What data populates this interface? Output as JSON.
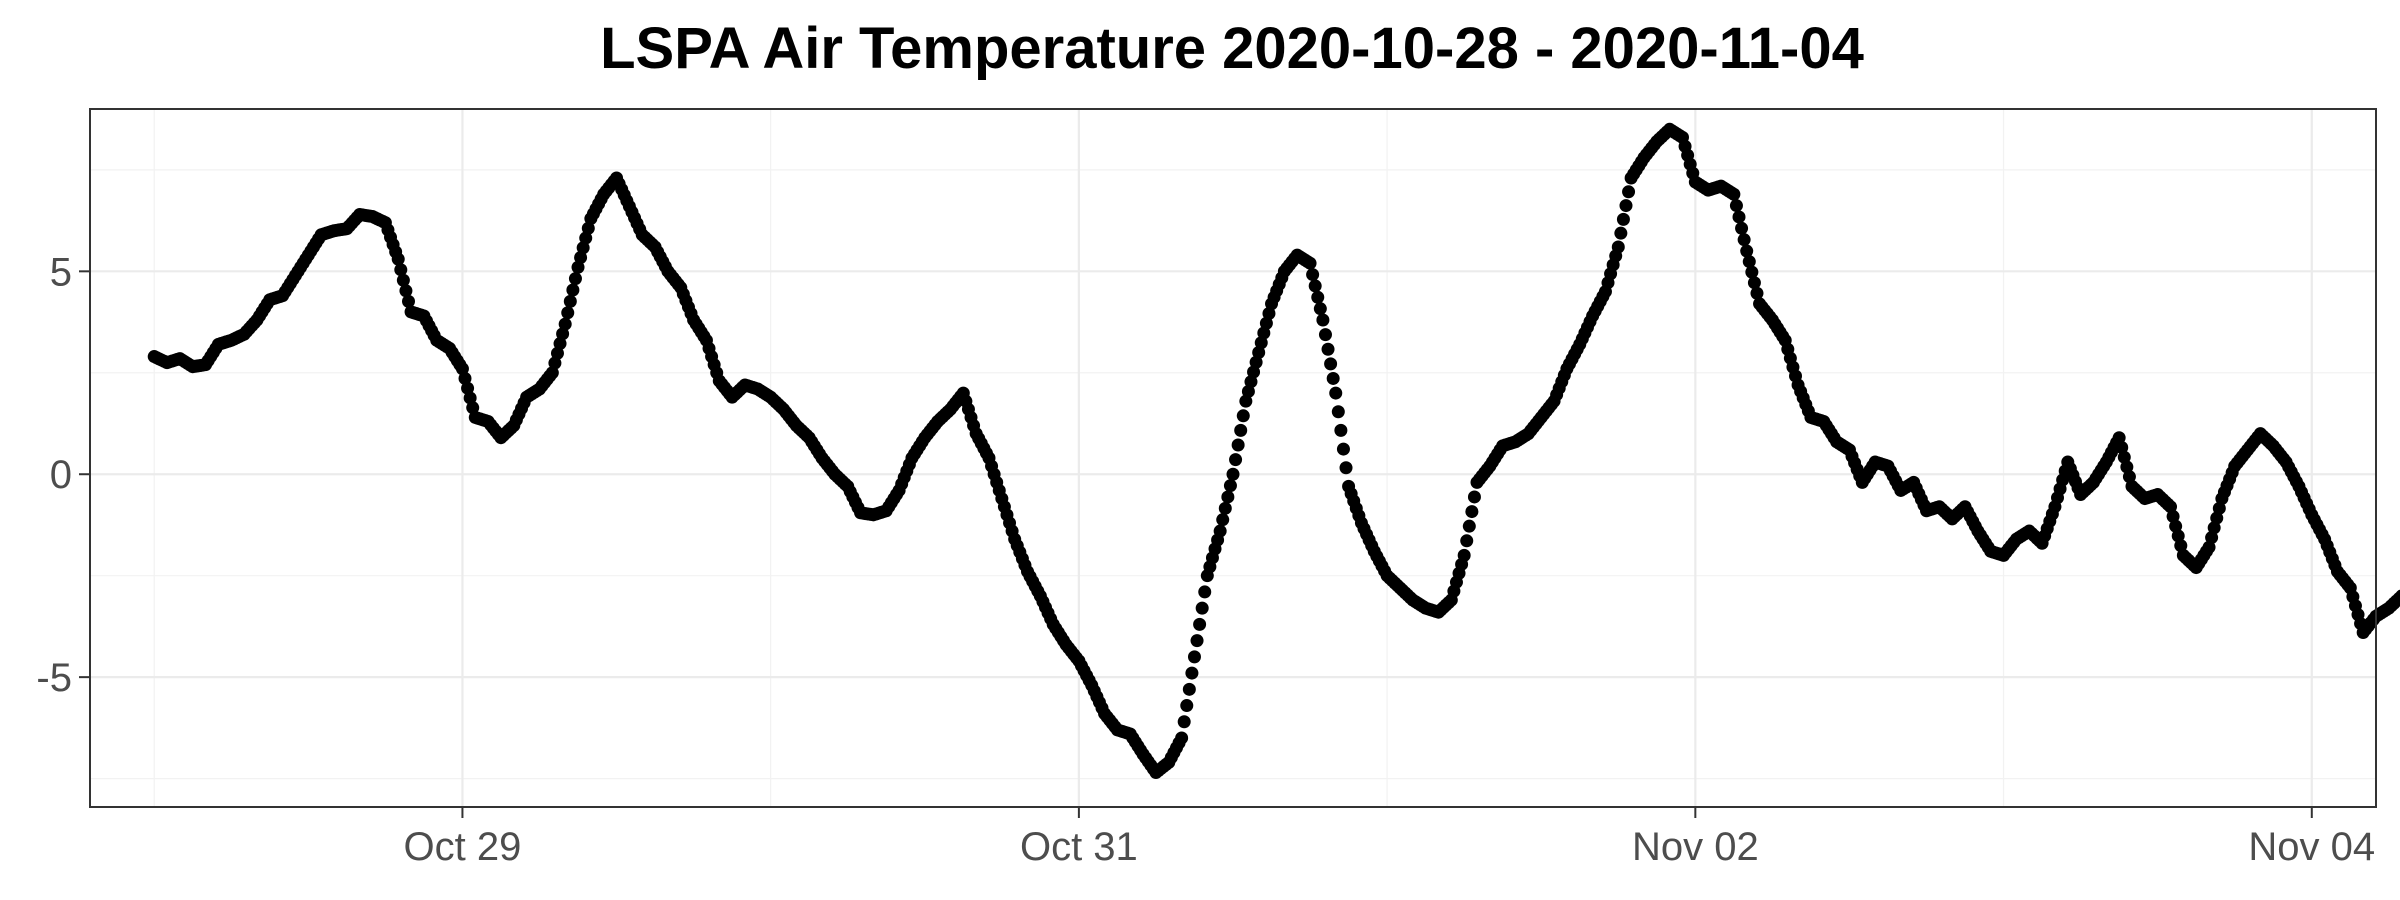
{
  "chart_data": {
    "type": "scatter",
    "title": "LSPA Air Temperature 2020-10-28 - 2020-11-04",
    "xlabel": "",
    "ylabel": "",
    "x_unit": "datetime",
    "xlim": [
      "2020-10-27T19:00",
      "2020-11-04T05:00"
    ],
    "ylim": [
      -8.2,
      9.0
    ],
    "x_ticks": [
      {
        "value": "2020-10-29T00:00",
        "label": "Oct 29"
      },
      {
        "value": "2020-10-31T00:00",
        "label": "Oct 31"
      },
      {
        "value": "2020-11-02T00:00",
        "label": "Nov 02"
      },
      {
        "value": "2020-11-04T00:00",
        "label": "Nov 04"
      }
    ],
    "y_ticks": [
      {
        "value": 5,
        "label": "5"
      },
      {
        "value": 0,
        "label": "0"
      },
      {
        "value": -5,
        "label": "-5"
      }
    ],
    "grid": true,
    "legend": "none",
    "point_color": "#000000",
    "series": [
      {
        "points": [
          [
            "2020-10-28T00:00",
            2.9
          ],
          [
            "2020-10-28T01:00",
            2.75
          ],
          [
            "2020-10-28T02:00",
            2.85
          ],
          [
            "2020-10-28T03:00",
            2.65
          ],
          [
            "2020-10-28T04:00",
            2.7
          ],
          [
            "2020-10-28T05:00",
            3.2
          ],
          [
            "2020-10-28T06:00",
            3.3
          ],
          [
            "2020-10-28T07:00",
            3.45
          ],
          [
            "2020-10-28T08:00",
            3.8
          ],
          [
            "2020-10-28T09:00",
            4.3
          ],
          [
            "2020-10-28T10:00",
            4.4
          ],
          [
            "2020-10-28T11:00",
            4.9
          ],
          [
            "2020-10-28T12:00",
            5.4
          ],
          [
            "2020-10-28T13:00",
            5.9
          ],
          [
            "2020-10-28T14:00",
            6.0
          ],
          [
            "2020-10-28T15:00",
            6.05
          ],
          [
            "2020-10-28T16:00",
            6.4
          ],
          [
            "2020-10-28T17:00",
            6.35
          ],
          [
            "2020-10-28T18:00",
            6.2
          ],
          [
            "2020-10-28T19:00",
            5.3
          ],
          [
            "2020-10-28T20:00",
            4.0
          ],
          [
            "2020-10-28T21:00",
            3.9
          ],
          [
            "2020-10-28T22:00",
            3.3
          ],
          [
            "2020-10-28T23:00",
            3.1
          ],
          [
            "2020-10-29T00:00",
            2.6
          ],
          [
            "2020-10-29T01:00",
            1.4
          ],
          [
            "2020-10-29T02:00",
            1.3
          ],
          [
            "2020-10-29T03:00",
            0.9
          ],
          [
            "2020-10-29T04:00",
            1.2
          ],
          [
            "2020-10-29T05:00",
            1.9
          ],
          [
            "2020-10-29T06:00",
            2.1
          ],
          [
            "2020-10-29T07:00",
            2.5
          ],
          [
            "2020-10-29T08:00",
            3.7
          ],
          [
            "2020-10-29T09:00",
            5.1
          ],
          [
            "2020-10-29T10:00",
            6.3
          ],
          [
            "2020-10-29T11:00",
            6.9
          ],
          [
            "2020-10-29T12:00",
            7.3
          ],
          [
            "2020-10-29T13:00",
            6.6
          ],
          [
            "2020-10-29T14:00",
            5.9
          ],
          [
            "2020-10-29T15:00",
            5.6
          ],
          [
            "2020-10-29T16:00",
            5.0
          ],
          [
            "2020-10-29T17:00",
            4.6
          ],
          [
            "2020-10-29T18:00",
            3.8
          ],
          [
            "2020-10-29T19:00",
            3.3
          ],
          [
            "2020-10-29T20:00",
            2.3
          ],
          [
            "2020-10-29T21:00",
            1.9
          ],
          [
            "2020-10-29T22:00",
            2.2
          ],
          [
            "2020-10-29T23:00",
            2.1
          ],
          [
            "2020-10-30T00:00",
            1.9
          ],
          [
            "2020-10-30T01:00",
            1.6
          ],
          [
            "2020-10-30T02:00",
            1.2
          ],
          [
            "2020-10-30T03:00",
            0.9
          ],
          [
            "2020-10-30T04:00",
            0.4
          ],
          [
            "2020-10-30T05:00",
            0.0
          ],
          [
            "2020-10-30T06:00",
            -0.3
          ],
          [
            "2020-10-30T07:00",
            -0.95
          ],
          [
            "2020-10-30T08:00",
            -1.0
          ],
          [
            "2020-10-30T09:00",
            -0.9
          ],
          [
            "2020-10-30T10:00",
            -0.4
          ],
          [
            "2020-10-30T11:00",
            0.4
          ],
          [
            "2020-10-30T12:00",
            0.9
          ],
          [
            "2020-10-30T13:00",
            1.3
          ],
          [
            "2020-10-30T14:00",
            1.6
          ],
          [
            "2020-10-30T15:00",
            2.0
          ],
          [
            "2020-10-30T16:00",
            1.0
          ],
          [
            "2020-10-30T17:00",
            0.4
          ],
          [
            "2020-10-30T18:00",
            -0.6
          ],
          [
            "2020-10-30T19:00",
            -1.6
          ],
          [
            "2020-10-30T20:00",
            -2.4
          ],
          [
            "2020-10-30T21:00",
            -3.0
          ],
          [
            "2020-10-30T22:00",
            -3.7
          ],
          [
            "2020-10-30T23:00",
            -4.2
          ],
          [
            "2020-10-31T00:00",
            -4.6
          ],
          [
            "2020-10-31T01:00",
            -5.2
          ],
          [
            "2020-10-31T02:00",
            -5.9
          ],
          [
            "2020-10-31T03:00",
            -6.3
          ],
          [
            "2020-10-31T04:00",
            -6.4
          ],
          [
            "2020-10-31T05:00",
            -6.9
          ],
          [
            "2020-10-31T06:00",
            -7.35
          ],
          [
            "2020-10-31T07:00",
            -7.1
          ],
          [
            "2020-10-31T08:00",
            -6.5
          ],
          [
            "2020-10-31T09:00",
            -4.5
          ],
          [
            "2020-10-31T10:00",
            -2.5
          ],
          [
            "2020-10-31T11:00",
            -1.4
          ],
          [
            "2020-10-31T12:00",
            0.0
          ],
          [
            "2020-10-31T13:00",
            1.8
          ],
          [
            "2020-10-31T14:00",
            3.0
          ],
          [
            "2020-10-31T15:00",
            4.2
          ],
          [
            "2020-10-31T16:00",
            5.0
          ],
          [
            "2020-10-31T17:00",
            5.4
          ],
          [
            "2020-10-31T18:00",
            5.2
          ],
          [
            "2020-10-31T19:00",
            3.8
          ],
          [
            "2020-10-31T20:00",
            2.0
          ],
          [
            "2020-10-31T21:00",
            -0.3
          ],
          [
            "2020-10-31T22:00",
            -1.2
          ],
          [
            "2020-10-31T23:00",
            -1.9
          ],
          [
            "2020-11-01T00:00",
            -2.5
          ],
          [
            "2020-11-01T01:00",
            -2.8
          ],
          [
            "2020-11-01T02:00",
            -3.1
          ],
          [
            "2020-11-01T03:00",
            -3.3
          ],
          [
            "2020-11-01T04:00",
            -3.4
          ],
          [
            "2020-11-01T05:00",
            -3.1
          ],
          [
            "2020-11-01T06:00",
            -2.0
          ],
          [
            "2020-11-01T07:00",
            -0.2
          ],
          [
            "2020-11-01T08:00",
            0.2
          ],
          [
            "2020-11-01T09:00",
            0.7
          ],
          [
            "2020-11-01T10:00",
            0.8
          ],
          [
            "2020-11-01T11:00",
            1.0
          ],
          [
            "2020-11-01T12:00",
            1.4
          ],
          [
            "2020-11-01T13:00",
            1.8
          ],
          [
            "2020-11-01T14:00",
            2.6
          ],
          [
            "2020-11-01T15:00",
            3.2
          ],
          [
            "2020-11-01T16:00",
            3.9
          ],
          [
            "2020-11-01T17:00",
            4.5
          ],
          [
            "2020-11-01T18:00",
            5.6
          ],
          [
            "2020-11-01T19:00",
            7.3
          ],
          [
            "2020-11-01T20:00",
            7.8
          ],
          [
            "2020-11-01T21:00",
            8.2
          ],
          [
            "2020-11-01T22:00",
            8.5
          ],
          [
            "2020-11-01T23:00",
            8.3
          ],
          [
            "2020-11-02T00:00",
            7.2
          ],
          [
            "2020-11-02T01:00",
            7.0
          ],
          [
            "2020-11-02T02:00",
            7.1
          ],
          [
            "2020-11-02T03:00",
            6.9
          ],
          [
            "2020-11-02T04:00",
            5.5
          ],
          [
            "2020-11-02T05:00",
            4.2
          ],
          [
            "2020-11-02T06:00",
            3.8
          ],
          [
            "2020-11-02T07:00",
            3.3
          ],
          [
            "2020-11-02T08:00",
            2.2
          ],
          [
            "2020-11-02T09:00",
            1.4
          ],
          [
            "2020-11-02T10:00",
            1.3
          ],
          [
            "2020-11-02T11:00",
            0.8
          ],
          [
            "2020-11-02T12:00",
            0.6
          ],
          [
            "2020-11-02T13:00",
            -0.2
          ],
          [
            "2020-11-02T14:00",
            0.3
          ],
          [
            "2020-11-02T15:00",
            0.2
          ],
          [
            "2020-11-02T16:00",
            -0.4
          ],
          [
            "2020-11-02T17:00",
            -0.2
          ],
          [
            "2020-11-02T18:00",
            -0.9
          ],
          [
            "2020-11-02T19:00",
            -0.8
          ],
          [
            "2020-11-02T20:00",
            -1.1
          ],
          [
            "2020-11-02T21:00",
            -0.8
          ],
          [
            "2020-11-02T22:00",
            -1.4
          ],
          [
            "2020-11-02T23:00",
            -1.9
          ],
          [
            "2020-11-03T00:00",
            -2.0
          ],
          [
            "2020-11-03T01:00",
            -1.6
          ],
          [
            "2020-11-03T02:00",
            -1.4
          ],
          [
            "2020-11-03T03:00",
            -1.7
          ],
          [
            "2020-11-03T04:00",
            -0.8
          ],
          [
            "2020-11-03T05:00",
            0.3
          ],
          [
            "2020-11-03T06:00",
            -0.5
          ],
          [
            "2020-11-03T07:00",
            -0.2
          ],
          [
            "2020-11-03T08:00",
            0.3
          ],
          [
            "2020-11-03T09:00",
            0.9
          ],
          [
            "2020-11-03T10:00",
            -0.3
          ],
          [
            "2020-11-03T11:00",
            -0.6
          ],
          [
            "2020-11-03T12:00",
            -0.5
          ],
          [
            "2020-11-03T13:00",
            -0.8
          ],
          [
            "2020-11-03T14:00",
            -2.0
          ],
          [
            "2020-11-03T15:00",
            -2.3
          ],
          [
            "2020-11-03T16:00",
            -1.8
          ],
          [
            "2020-11-03T17:00",
            -0.6
          ],
          [
            "2020-11-03T18:00",
            0.2
          ],
          [
            "2020-11-03T19:00",
            0.6
          ],
          [
            "2020-11-03T20:00",
            1.0
          ],
          [
            "2020-11-03T21:00",
            0.7
          ],
          [
            "2020-11-03T22:00",
            0.3
          ],
          [
            "2020-11-03T23:00",
            -0.3
          ],
          [
            "2020-11-04T00:00",
            -1.0
          ],
          [
            "2020-11-04T01:00",
            -1.6
          ],
          [
            "2020-11-04T02:00",
            -2.4
          ],
          [
            "2020-11-04T03:00",
            -2.8
          ],
          [
            "2020-11-04T04:00",
            -3.9
          ],
          [
            "2020-11-04T05:00",
            -3.5
          ],
          [
            "2020-11-04T06:00",
            -3.3
          ],
          [
            "2020-11-04T07:00",
            -3.0
          ]
        ]
      }
    ]
  }
}
